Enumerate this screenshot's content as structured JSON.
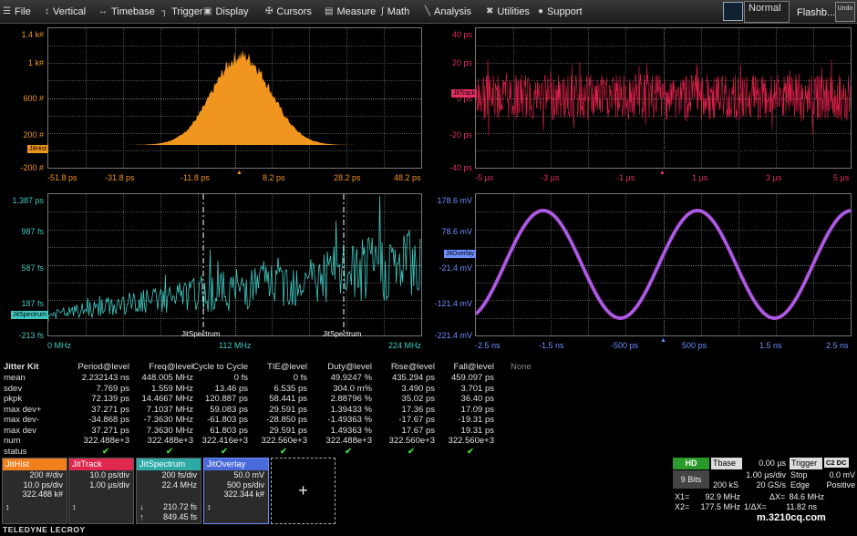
{
  "menu": {
    "items": [
      "File",
      "Vertical",
      "Timebase",
      "Trigger",
      "Display",
      "Cursors",
      "Measure",
      "Math",
      "Analysis",
      "Utilities",
      "Support"
    ],
    "trigger_mode": "Normal",
    "flashback": "Flashb...",
    "undo": "Undo"
  },
  "colors": {
    "orange": "#f0951e",
    "red": "#e0204a",
    "teal": "#3fc8c0",
    "blue": "#6d8fff",
    "magenta": "#c040d0"
  },
  "hist": {
    "tag": "JitHist",
    "y_labels": [
      "1.4 k#",
      "1 k#",
      "600 #",
      "200 #",
      "-200 #"
    ],
    "x_labels": [
      "-51.8 ps",
      "-31.8 ps",
      "-11.8 ps",
      "8.2 ps",
      "28.2 ps",
      "48.2 ps"
    ]
  },
  "track": {
    "tag": "JitTrack",
    "y_labels": [
      "40 ps",
      "20 ps",
      "0 ps",
      "-20 ps",
      "-40 ps"
    ],
    "x_labels": [
      "-5 µs",
      "-3 µs",
      "-1 µs",
      "1 µs",
      "3 µs",
      "5 µs"
    ]
  },
  "spectrum": {
    "tag": "JitSpectrum",
    "y_labels": [
      "1.387 ps",
      "987 fs",
      "587 fs",
      "187 fs",
      "-213 fs"
    ],
    "x_labels": [
      "0 MHz",
      "112 MHz",
      "224 MHz"
    ],
    "cursor_label": "JitSpectrum"
  },
  "overlay": {
    "tag": "JitOverlay",
    "y_labels": [
      "178.6 mV",
      "78.6 mV",
      "-21.4 mV",
      "-121.4 mV",
      "-221.4 mV"
    ],
    "x_labels": [
      "-2.5 ns",
      "-1.5 ns",
      "-500 ps",
      "500 ps",
      "1.5 ns",
      "2.5 ns"
    ]
  },
  "jitter_kit": {
    "title": "Jitter Kit",
    "none": "None",
    "headers": [
      "Period@level",
      "Freq@level",
      "Cycle to Cycle",
      "TIE@level",
      "Duty@level",
      "Rise@level",
      "Fall@level"
    ],
    "rows": [
      {
        "label": "mean",
        "values": [
          "2.232143 ns",
          "448.005 MHz",
          "0 fs",
          "0 fs",
          "49.9247 %",
          "435.294 ps",
          "459.097 ps"
        ]
      },
      {
        "label": "sdev",
        "values": [
          "7.769 ps",
          "1.559 MHz",
          "13.46 ps",
          "6.535 ps",
          "304.0 m%",
          "3.490 ps",
          "3.701 ps"
        ]
      },
      {
        "label": "pkpk",
        "values": [
          "72.139 ps",
          "14.4667 MHz",
          "120.887 ps",
          "58.441 ps",
          "2.88796 %",
          "35.02 ps",
          "36.40 ps"
        ]
      },
      {
        "label": "max dev+",
        "values": [
          "37.271 ps",
          "7.1037 MHz",
          "59.083 ps",
          "29.591 ps",
          "1.39433 %",
          "17.36 ps",
          "17.09 ps"
        ]
      },
      {
        "label": "max dev-",
        "values": [
          "-34.868 ps",
          "-7.3630 MHz",
          "-61.803 ps",
          "-28.850 ps",
          "-1.49363 %",
          "-17.67 ps",
          "-19.31 ps"
        ]
      },
      {
        "label": "max dev",
        "values": [
          "37.271 ps",
          "7.3630 MHz",
          "61.803 ps",
          "29.591 ps",
          "1.49363 %",
          "17.67 ps",
          "19.31 ps"
        ]
      },
      {
        "label": "num",
        "values": [
          "322.488e+3",
          "322.488e+3",
          "322.416e+3",
          "322.560e+3",
          "322.488e+3",
          "322.560e+3",
          "322.560e+3"
        ]
      },
      {
        "label": "status",
        "values": [
          "✔",
          "✔",
          "✔",
          "✔",
          "✔",
          "✔",
          "✔"
        ]
      }
    ]
  },
  "channels": [
    {
      "name": "JitHist",
      "color": "#f07f1e",
      "rows": [
        "200 #/div",
        "10.0 ps/div",
        "322.488 k#"
      ],
      "bottom": [
        "",
        "",
        ""
      ]
    },
    {
      "name": "JitTrack",
      "color": "#e0284e",
      "rows": [
        "10.0 ps/div",
        "1.00 µs/div",
        ""
      ],
      "bottom": [
        "",
        "",
        ""
      ]
    },
    {
      "name": "JitSpectrum",
      "color": "#2eaaa6",
      "rows": [
        "200 fs/div",
        "22.4 MHz",
        ""
      ],
      "bottom": [
        "210.72 fs",
        "849.45 fs",
        ""
      ]
    },
    {
      "name": "JitOverlay",
      "color": "#4a6adc",
      "rows": [
        "50.0 mV",
        "500 ps/div",
        "322.344 k#"
      ],
      "bottom": [
        "",
        "",
        ""
      ]
    }
  ],
  "timebase": {
    "hd": "HD",
    "bits": "9 Bits",
    "tbase_label": "Tbase",
    "tbase_val": "0.00 µs",
    "tdiv": "1.00 µs/div",
    "samples": "200 kS",
    "rate": "20 GS/s",
    "trigger": "Trigger",
    "trig_icons": "C2 DC",
    "stop": "Stop",
    "trig_level": "0.0 mV",
    "edge": "Edge",
    "polarity": "Positive"
  },
  "cursors": {
    "x1": "X1=",
    "x1_val": "92.9 MHz",
    "x2": "X2=",
    "x2_val": "177.5 MHz",
    "dx": "ΔX=",
    "dx_val": "84.6 MHz",
    "inv": "1/ΔX=",
    "inv_val": "11.82 ns"
  },
  "brand": "TELEDYNE LECROY",
  "watermark": "m.3210cq.com"
}
